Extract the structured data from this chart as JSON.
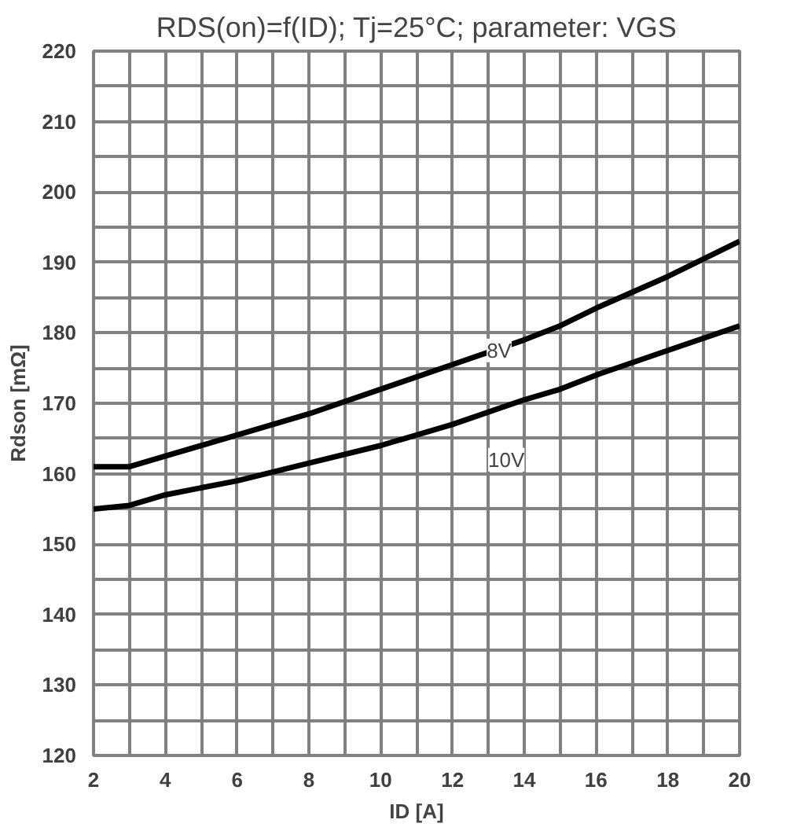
{
  "chart_data": {
    "type": "line",
    "title": "RDS(on)=f(ID); Tj=25°C; parameter: VGS",
    "xlabel": "ID [A]",
    "ylabel": "Rdson [mΩ]",
    "x": [
      2,
      3,
      4,
      6,
      8,
      10,
      12,
      14,
      15,
      16,
      18,
      20
    ],
    "series": [
      {
        "color": "#000000",
        "values": [
          161,
          161,
          162.5,
          165.5,
          168.5,
          172,
          175.5,
          179,
          181,
          183.5,
          188,
          193
        ]
      },
      {
        "color": "#000000",
        "values": [
          155,
          155.5,
          157,
          159,
          161.5,
          164,
          167,
          170.5,
          172,
          174,
          177.5,
          181
        ]
      }
    ],
    "annotations": [
      {
        "text": "8V",
        "x": 13.3,
        "y": 177.5
      },
      {
        "text": "10V",
        "x": 13.5,
        "y": 162
      }
    ],
    "xlim": [
      2,
      20
    ],
    "ylim": [
      120,
      220
    ],
    "xticks": [
      2,
      {
        "value": 3,
        "label": null
      },
      4,
      {
        "value": 5,
        "label": null
      },
      6,
      {
        "value": 7,
        "label": null
      },
      8,
      {
        "value": 9,
        "label": null
      },
      10,
      {
        "value": 11,
        "label": null
      },
      12,
      {
        "value": 13,
        "label": null
      },
      14,
      {
        "value": 15,
        "label": null
      },
      16,
      {
        "value": 17,
        "label": null
      },
      18,
      {
        "value": 19,
        "label": null
      },
      20
    ],
    "yticks": [
      120,
      {
        "value": 125,
        "label": null
      },
      130,
      {
        "value": 135,
        "label": null
      },
      140,
      {
        "value": 145,
        "label": null
      },
      150,
      {
        "value": 155,
        "label": null
      },
      160,
      {
        "value": 165,
        "label": null
      },
      170,
      {
        "value": 175,
        "label": null
      },
      180,
      {
        "value": 185,
        "label": null
      },
      190,
      {
        "value": 195,
        "label": null
      },
      200,
      {
        "value": 205,
        "label": null
      },
      210,
      {
        "value": 215,
        "label": null
      },
      220
    ],
    "grid": true,
    "line_style": "solid"
  }
}
